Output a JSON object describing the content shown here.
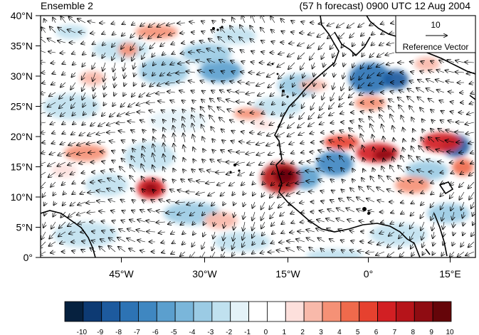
{
  "header": {
    "ensemble_label": "Ensemble 2",
    "forecast_label": "(57 h forecast) 0900 UTC 12 Aug 2004"
  },
  "map": {
    "y_tick_labels": [
      "40°N",
      "35°N",
      "30°N",
      "25°N",
      "20°N",
      "15°N",
      "10°N",
      "5°N",
      "0°"
    ],
    "x_tick_labels": [
      "45°W",
      "30°W",
      "15°W",
      "0°",
      "15°E"
    ],
    "lat_range": [
      0,
      40
    ],
    "lon_range": [
      -58,
      20
    ]
  },
  "reference_vector": {
    "magnitude": "10",
    "label": "Reference Vector"
  },
  "colorbar": {
    "tick_labels": [
      "-10",
      "-9",
      "-8",
      "-7",
      "-6",
      "-5",
      "-4",
      "-3",
      "-2",
      "-1",
      "0",
      "1",
      "2",
      "3",
      "4",
      "5",
      "6",
      "7",
      "8",
      "9",
      "10"
    ],
    "colors": [
      "#06213f",
      "#0d3a73",
      "#1d5a9e",
      "#2d73b4",
      "#3f87c1",
      "#5b9fce",
      "#7ab6da",
      "#9bcbe4",
      "#c0e1ef",
      "#e4f2f8",
      "#ffffff",
      "#ffffff",
      "#fde0dc",
      "#f8b9aa",
      "#f59176",
      "#ef6a4c",
      "#e6412f",
      "#d21f23",
      "#b6141a",
      "#8f0c12",
      "#650509"
    ]
  }
}
